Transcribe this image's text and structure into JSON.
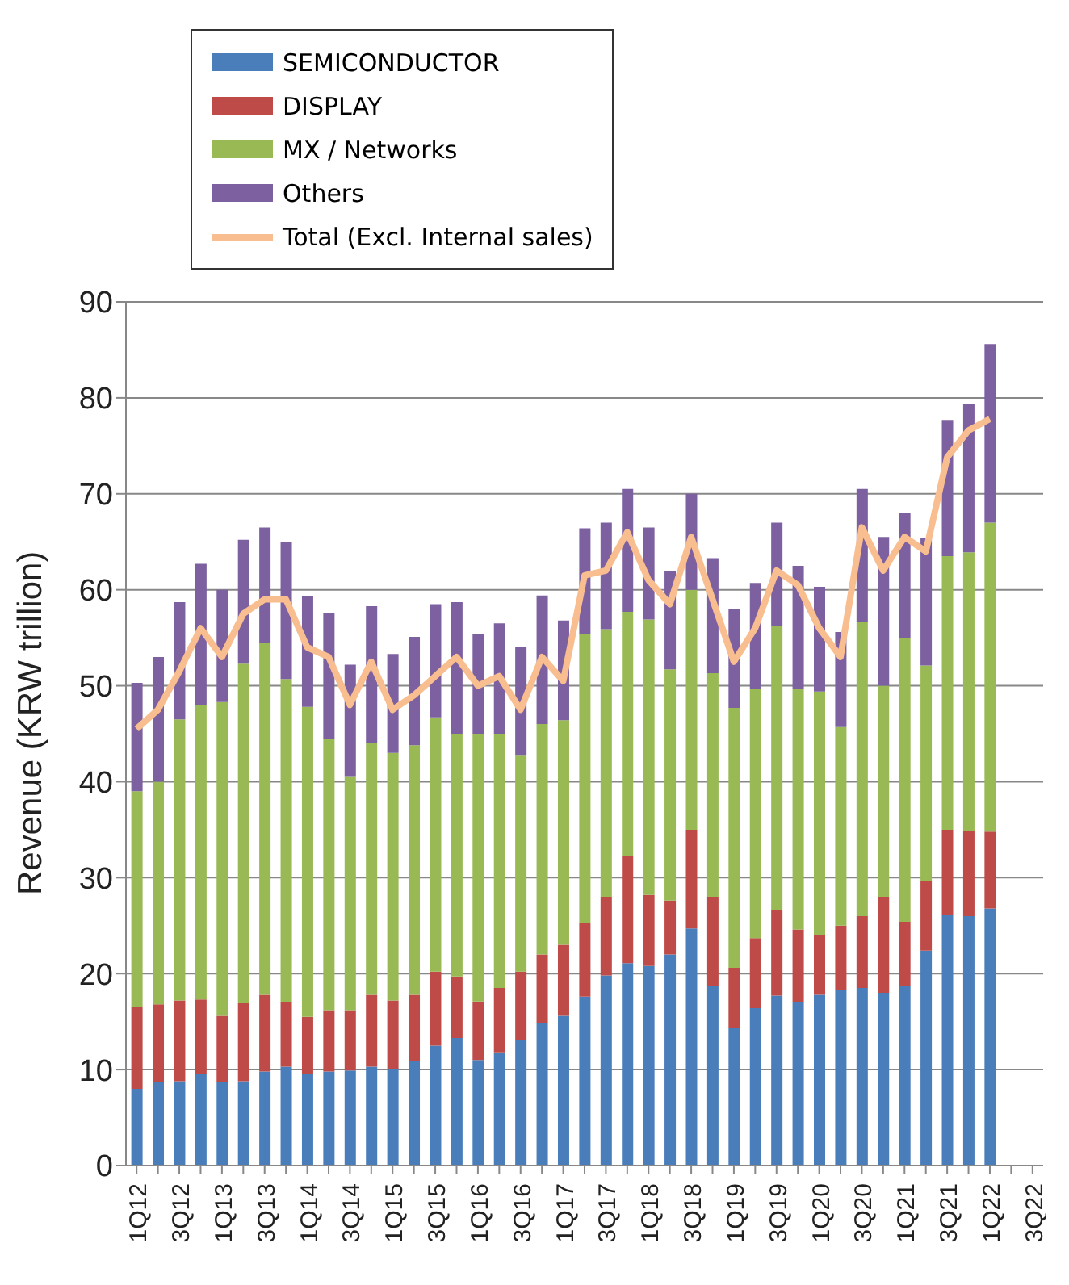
{
  "chart_data": {
    "type": "bar",
    "stacked": true,
    "ylabel": "Revenue  (KRW trillion)",
    "categories": [
      "1Q12",
      null,
      "3Q12",
      null,
      "1Q13",
      null,
      "3Q13",
      null,
      "1Q14",
      null,
      "3Q14",
      null,
      "1Q15",
      null,
      "3Q15",
      null,
      "1Q16",
      null,
      "3Q16",
      null,
      "1Q17",
      null,
      "3Q17",
      null,
      "1Q18",
      null,
      "3Q18",
      null,
      "1Q19",
      null,
      "3Q19",
      null,
      "1Q20",
      null,
      "3Q20",
      null,
      "1Q21",
      null,
      "3Q21",
      null,
      "1Q22",
      null,
      "3Q22"
    ],
    "series": [
      {
        "name": "SEMICONDUCTOR",
        "color": "#4a7ebb",
        "values": [
          8,
          8.7,
          8.8,
          9.5,
          8.7,
          8.8,
          9.8,
          10.3,
          9.5,
          9.8,
          9.9,
          10.3,
          10.1,
          10.9,
          12.5,
          13.3,
          11,
          11.8,
          13.1,
          14.8,
          15.6,
          17.6,
          19.8,
          21.1,
          20.8,
          22,
          24.7,
          18.7,
          14.3,
          16.4,
          17.7,
          17,
          17.8,
          18.3,
          18.5,
          18,
          18.7,
          22.4,
          26.1,
          26,
          26.8,
          null,
          null
        ]
      },
      {
        "name": "DISPLAY",
        "color": "#be4b48",
        "values": [
          8.5,
          8.1,
          8.4,
          7.8,
          6.9,
          8.1,
          8,
          6.7,
          6,
          6.4,
          6.3,
          7.5,
          7.1,
          6.9,
          7.7,
          6.4,
          6.1,
          6.7,
          7.1,
          7.2,
          7.4,
          7.7,
          8.2,
          11.2,
          7.4,
          5.6,
          10.3,
          9.3,
          6.3,
          7.3,
          8.9,
          7.6,
          6.2,
          6.7,
          7.5,
          10,
          6.7,
          7.2,
          8.9,
          8.9,
          8,
          null,
          null
        ]
      },
      {
        "name": "MX / Networks",
        "color": "#98b954",
        "values": [
          22.5,
          23.2,
          29.3,
          30.7,
          32.7,
          35.4,
          36.7,
          33.7,
          32.3,
          28.3,
          24.3,
          26.2,
          25.8,
          26,
          26.5,
          25.3,
          27.9,
          26.5,
          22.6,
          24,
          23.4,
          30.1,
          27.9,
          25.4,
          28.7,
          24.1,
          25,
          23.3,
          27.1,
          26,
          29.6,
          25.1,
          25.4,
          20.7,
          30.6,
          22,
          29.6,
          22.5,
          28.5,
          29,
          32.2,
          null,
          null
        ]
      },
      {
        "name": "Others",
        "color": "#7d60a0",
        "values": [
          11.3,
          13,
          12.2,
          14.7,
          11.7,
          12.9,
          12,
          14.3,
          11.5,
          13.1,
          11.7,
          14.3,
          10.3,
          11.3,
          11.8,
          13.7,
          10.4,
          11.5,
          11.2,
          13.4,
          10.4,
          11,
          11.1,
          12.8,
          9.6,
          10.3,
          10,
          12,
          10.3,
          11,
          10.8,
          12.8,
          10.9,
          9.9,
          13.9,
          15.5,
          13,
          13.3,
          14.2,
          15.5,
          18.6,
          null,
          null
        ]
      },
      {
        "name": "Total (Excl. Internal sales)",
        "type": "line",
        "color": "#f9be8f",
        "values": [
          45.5,
          47.5,
          51.5,
          56,
          53,
          57.5,
          59,
          59,
          54,
          53,
          48,
          52.5,
          47.5,
          49,
          51,
          53,
          50,
          51,
          47.5,
          53,
          50.5,
          61.5,
          62,
          66,
          61,
          58.5,
          65.5,
          59,
          52.5,
          56,
          62,
          60.5,
          56,
          53,
          66.5,
          62,
          65.5,
          64,
          73.8,
          76.6,
          77.8,
          null,
          null
        ]
      }
    ],
    "ylim": [
      0,
      90
    ],
    "yticks": [
      0,
      10,
      20,
      30,
      40,
      50,
      60,
      70,
      80,
      90
    ],
    "grid": "y",
    "legend": "top",
    "marker": "none",
    "line_style": "solid"
  }
}
